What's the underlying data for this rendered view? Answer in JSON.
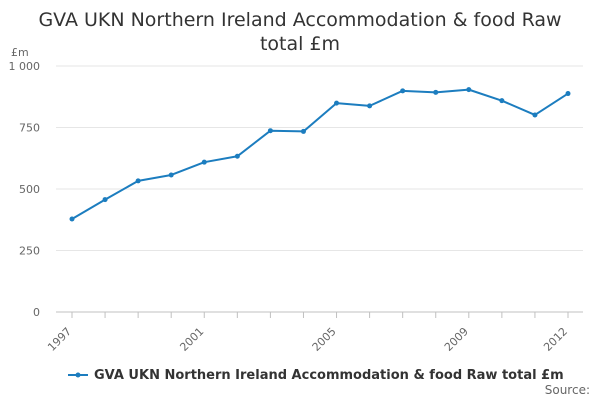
{
  "chart_data": {
    "type": "line",
    "title_line1": "GVA UKN Northern Ireland Accommodation & food Raw",
    "title_line2": "total £m",
    "ylabel": "£m",
    "xlabel": "",
    "x": [
      1997,
      1998,
      1999,
      2000,
      2001,
      2002,
      2003,
      2004,
      2005,
      2006,
      2007,
      2008,
      2009,
      2010,
      2011,
      2012
    ],
    "x_tick_labels": [
      "1997",
      "2001",
      "2005",
      "2009",
      "2012"
    ],
    "y_ticks": [
      0,
      250,
      500,
      750,
      1000
    ],
    "y_tick_labels": [
      "0",
      "250",
      "500",
      "750",
      "1 000"
    ],
    "ylim": [
      0,
      1000
    ],
    "grid": true,
    "series": [
      {
        "name": "GVA UKN Northern Ireland Accommodation & food Raw total £m",
        "color": "#1c7dbf",
        "values": [
          378,
          457,
          533,
          557,
          609,
          633,
          737,
          734,
          849,
          838,
          899,
          893,
          904,
          859,
          801,
          888
        ]
      }
    ],
    "legend_position": "bottom-left"
  },
  "footer": {
    "source_label": "Source:"
  }
}
